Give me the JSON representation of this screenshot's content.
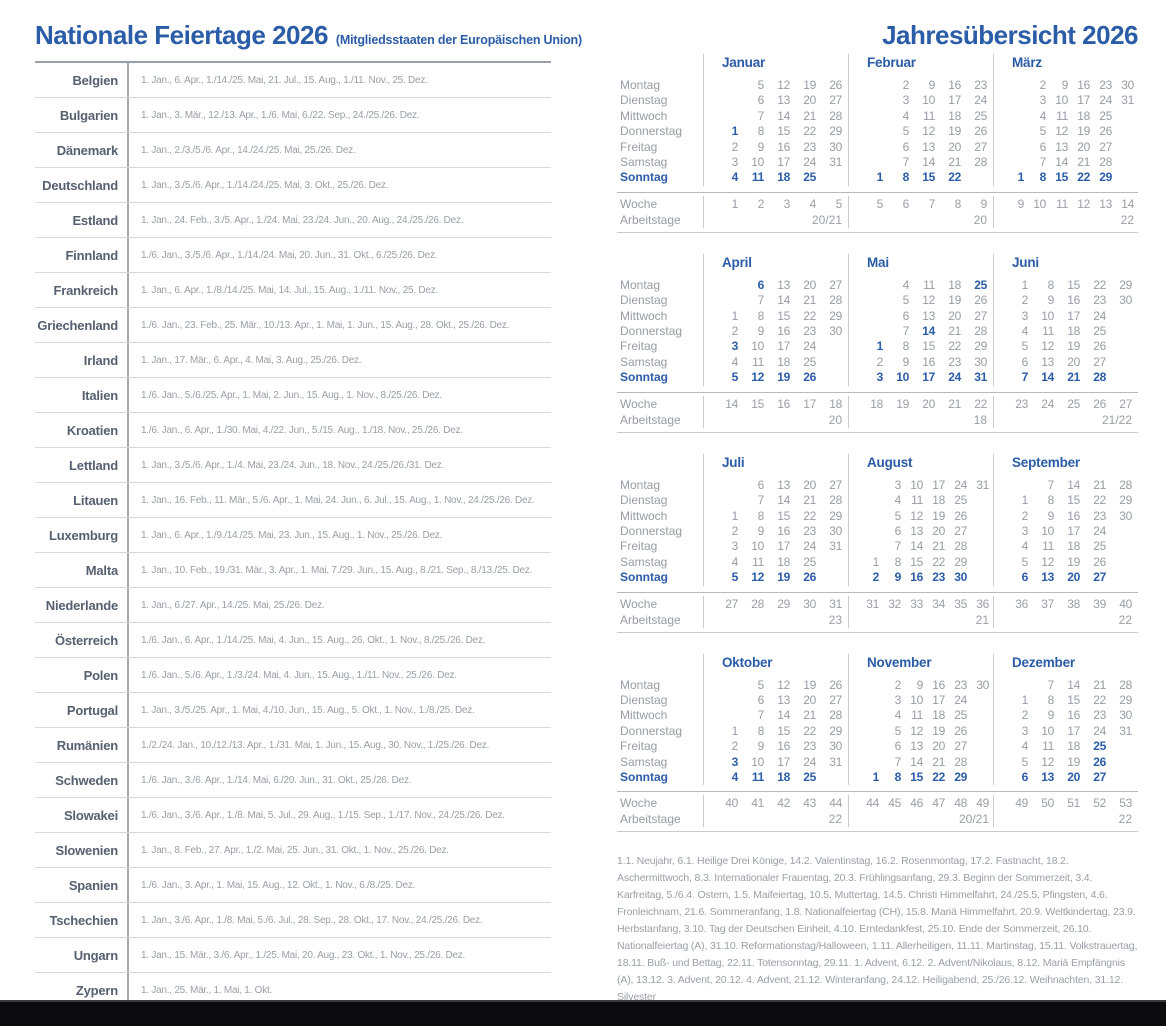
{
  "page": {
    "left_title": "Nationale Feiertage 2026",
    "left_subtitle": "(Mitgliedsstaaten der Europäischen Union)",
    "right_title": "Jahresübersicht 2026"
  },
  "colors": {
    "accent_blue": "#2b5ca7",
    "number_gray": "#989ca4",
    "country_slate": "#566070",
    "dates_gray": "#9a9ea6"
  },
  "holiday_table": {
    "rows": [
      {
        "country": "Belgien",
        "dates": "1. Jan., 6. Apr., 1./14./25. Mai, 21. Jul., 15. Aug., 1./11. Nov., 25. Dez."
      },
      {
        "country": "Bulgarien",
        "dates": "1. Jan., 3. Mär., 12./13. Apr., 1./6. Mai, 6./22. Sep., 24./25./26. Dez."
      },
      {
        "country": "Dänemark",
        "dates": "1. Jan., 2./3./5./6. Apr., 14./24./25. Mai, 25./26. Dez."
      },
      {
        "country": "Deutschland",
        "dates": "1. Jan., 3./5./6. Apr., 1./14./24./25. Mai, 3. Okt., 25./26. Dez."
      },
      {
        "country": "Estland",
        "dates": "1. Jan., 24. Feb., 3./5. Apr., 1./24. Mai, 23./24. Jun., 20. Aug., 24./25./26. Dez."
      },
      {
        "country": "Finnland",
        "dates": "1./6. Jan., 3./5./6. Apr., 1./14./24. Mai, 20. Jun., 31. Okt., 6./25./26. Dez."
      },
      {
        "country": "Frankreich",
        "dates": "1. Jan., 6. Apr., 1./8./14./25. Mai, 14. Jul., 15. Aug., 1./11. Nov., 25. Dez."
      },
      {
        "country": "Griechenland",
        "dates": "1./6. Jan., 23. Feb., 25. Mär., 10./13. Apr., 1. Mai, 1. Jun., 15. Aug., 28. Okt., 25./26. Dez."
      },
      {
        "country": "Irland",
        "dates": "1. Jan., 17. Mär., 6. Apr., 4. Mai, 3. Aug., 25./26. Dez."
      },
      {
        "country": "Italien",
        "dates": "1./6. Jan., 5./6./25. Apr., 1. Mai, 2. Jun., 15. Aug., 1. Nov., 8./25./26. Dez."
      },
      {
        "country": "Kroatien",
        "dates": "1./6. Jan., 6. Apr., 1./30. Mai, 4./22. Jun., 5./15. Aug., 1./18. Nov., 25./26. Dez."
      },
      {
        "country": "Lettland",
        "dates": "1. Jan., 3./5./6. Apr., 1./4. Mai, 23./24. Jun., 18. Nov., 24./25./26./31. Dez."
      },
      {
        "country": "Litauen",
        "dates": "1. Jan., 16. Feb., 11. Mär., 5./6. Apr., 1. Mai, 24. Jun., 6. Jul., 15. Aug., 1. Nov., 24./25./26. Dez."
      },
      {
        "country": "Luxemburg",
        "dates": "1. Jan., 6. Apr., 1./9./14./25. Mai, 23. Jun., 15. Aug., 1. Nov., 25./26. Dez."
      },
      {
        "country": "Malta",
        "dates": "1. Jan., 10. Feb., 19./31. Mär., 3. Apr., 1. Mai, 7./29. Jun., 15. Aug., 8./21. Sep., 8./13./25. Dez."
      },
      {
        "country": "Niederlande",
        "dates": "1. Jan., 6./27. Apr., 14./25. Mai, 25./26. Dez."
      },
      {
        "country": "Österreich",
        "dates": "1./6. Jan., 6. Apr., 1./14./25. Mai, 4. Jun., 15. Aug., 26. Okt., 1. Nov., 8./25./26. Dez."
      },
      {
        "country": "Polen",
        "dates": "1./6. Jan., 5./6. Apr., 1./3./24. Mai, 4. Jun., 15. Aug., 1./11. Nov., 25./26. Dez."
      },
      {
        "country": "Portugal",
        "dates": "1. Jan., 3./5./25. Apr., 1. Mai, 4./10. Jun., 15. Aug., 5. Okt., 1. Nov., 1./8./25. Dez."
      },
      {
        "country": "Rumänien",
        "dates": "1./2./24. Jan., 10./12./13. Apr., 1./31. Mai, 1. Jun., 15. Aug., 30. Nov., 1./25./26. Dez."
      },
      {
        "country": "Schweden",
        "dates": "1./6. Jan., 3./6. Apr., 1./14. Mai, 6./20. Jun., 31. Okt., 25./26. Dez."
      },
      {
        "country": "Slowakei",
        "dates": "1./6. Jan., 3./6. Apr., 1./8. Mai, 5. Jul., 29. Aug., 1./15. Sep., 1./17. Nov., 24./25./26. Dez."
      },
      {
        "country": "Slowenien",
        "dates": "1. Jan., 8. Feb., 27. Apr., 1./2. Mai, 25. Jun., 31. Okt., 1. Nov., 25./26. Dez."
      },
      {
        "country": "Spanien",
        "dates": "1./6. Jan., 3. Apr., 1. Mai, 15. Aug., 12. Okt., 1. Nov., 6./8./25. Dez."
      },
      {
        "country": "Tschechien",
        "dates": "1. Jan., 3./6. Apr., 1./8. Mai, 5./6. Jul., 28. Sep., 28. Okt., 17. Nov., 24./25./26. Dez."
      },
      {
        "country": "Ungarn",
        "dates": "1. Jan., 15. Mär., 3./6. Apr., 1./25. Mai, 20. Aug., 23. Okt., 1. Nov., 25./26. Dez."
      },
      {
        "country": "Zypern",
        "dates": "1. Jan., 25. Mär., 1. Mai, 1. Okt."
      }
    ]
  },
  "calendar": {
    "weekday_labels": [
      "Montag",
      "Dienstag",
      "Mittwoch",
      "Donnerstag",
      "Freitag",
      "Samstag",
      "Sonntag"
    ],
    "week_label": "Woche",
    "workdays_label": "Arbeitstage",
    "months": [
      {
        "name": "Januar",
        "cols": 5,
        "bold": [
          1
        ],
        "days": [
          [
            "",
            "5",
            "12",
            "19",
            "26"
          ],
          [
            "",
            "6",
            "13",
            "20",
            "27"
          ],
          [
            "",
            "7",
            "14",
            "21",
            "28"
          ],
          [
            "1",
            "8",
            "15",
            "22",
            "29"
          ],
          [
            "2",
            "9",
            "16",
            "23",
            "30"
          ],
          [
            "3",
            "10",
            "17",
            "24",
            "31"
          ],
          [
            "4",
            "11",
            "18",
            "25",
            ""
          ]
        ],
        "weeks": [
          "1",
          "2",
          "3",
          "4",
          "5"
        ],
        "workdays": "20/21"
      },
      {
        "name": "Februar",
        "cols": 5,
        "bold": [],
        "days": [
          [
            "",
            "2",
            "9",
            "16",
            "23"
          ],
          [
            "",
            "3",
            "10",
            "17",
            "24"
          ],
          [
            "",
            "4",
            "11",
            "18",
            "25"
          ],
          [
            "",
            "5",
            "12",
            "19",
            "26"
          ],
          [
            "",
            "6",
            "13",
            "20",
            "27"
          ],
          [
            "",
            "7",
            "14",
            "21",
            "28"
          ],
          [
            "1",
            "8",
            "15",
            "22",
            ""
          ]
        ],
        "weeks": [
          "5",
          "6",
          "7",
          "8",
          "9"
        ],
        "workdays": "20"
      },
      {
        "name": "März",
        "cols": 6,
        "bold": [],
        "days": [
          [
            "",
            "2",
            "9",
            "16",
            "23",
            "30"
          ],
          [
            "",
            "3",
            "10",
            "17",
            "24",
            "31"
          ],
          [
            "",
            "4",
            "11",
            "18",
            "25",
            ""
          ],
          [
            "",
            "5",
            "12",
            "19",
            "26",
            ""
          ],
          [
            "",
            "6",
            "13",
            "20",
            "27",
            ""
          ],
          [
            "",
            "7",
            "14",
            "21",
            "28",
            ""
          ],
          [
            "1",
            "8",
            "15",
            "22",
            "29",
            ""
          ]
        ],
        "weeks": [
          "9",
          "10",
          "11",
          "12",
          "13",
          "14"
        ],
        "workdays": "22"
      },
      {
        "name": "April",
        "cols": 5,
        "bold": [
          3,
          6
        ],
        "days": [
          [
            "",
            "6",
            "13",
            "20",
            "27"
          ],
          [
            "",
            "7",
            "14",
            "21",
            "28"
          ],
          [
            "1",
            "8",
            "15",
            "22",
            "29"
          ],
          [
            "2",
            "9",
            "16",
            "23",
            "30"
          ],
          [
            "3",
            "10",
            "17",
            "24",
            ""
          ],
          [
            "4",
            "11",
            "18",
            "25",
            ""
          ],
          [
            "5",
            "12",
            "19",
            "26",
            ""
          ]
        ],
        "weeks": [
          "14",
          "15",
          "16",
          "17",
          "18"
        ],
        "workdays": "20"
      },
      {
        "name": "Mai",
        "cols": 5,
        "bold": [
          1,
          14,
          25
        ],
        "days": [
          [
            "",
            "4",
            "11",
            "18",
            "25"
          ],
          [
            "",
            "5",
            "12",
            "19",
            "26"
          ],
          [
            "",
            "6",
            "13",
            "20",
            "27"
          ],
          [
            "",
            "7",
            "14",
            "21",
            "28"
          ],
          [
            "1",
            "8",
            "15",
            "22",
            "29"
          ],
          [
            "2",
            "9",
            "16",
            "23",
            "30"
          ],
          [
            "3",
            "10",
            "17",
            "24",
            "31"
          ]
        ],
        "weeks": [
          "18",
          "19",
          "20",
          "21",
          "22"
        ],
        "workdays": "18"
      },
      {
        "name": "Juni",
        "cols": 5,
        "bold": [],
        "days": [
          [
            "1",
            "8",
            "15",
            "22",
            "29"
          ],
          [
            "2",
            "9",
            "16",
            "23",
            "30"
          ],
          [
            "3",
            "10",
            "17",
            "24",
            ""
          ],
          [
            "4",
            "11",
            "18",
            "25",
            ""
          ],
          [
            "5",
            "12",
            "19",
            "26",
            ""
          ],
          [
            "6",
            "13",
            "20",
            "27",
            ""
          ],
          [
            "7",
            "14",
            "21",
            "28",
            ""
          ]
        ],
        "weeks": [
          "23",
          "24",
          "25",
          "26",
          "27"
        ],
        "workdays": "21/22"
      },
      {
        "name": "Juli",
        "cols": 5,
        "bold": [],
        "days": [
          [
            "",
            "6",
            "13",
            "20",
            "27"
          ],
          [
            "",
            "7",
            "14",
            "21",
            "28"
          ],
          [
            "1",
            "8",
            "15",
            "22",
            "29"
          ],
          [
            "2",
            "9",
            "16",
            "23",
            "30"
          ],
          [
            "3",
            "10",
            "17",
            "24",
            "31"
          ],
          [
            "4",
            "11",
            "18",
            "25",
            ""
          ],
          [
            "5",
            "12",
            "19",
            "26",
            ""
          ]
        ],
        "weeks": [
          "27",
          "28",
          "29",
          "30",
          "31"
        ],
        "workdays": "23"
      },
      {
        "name": "August",
        "cols": 6,
        "bold": [],
        "days": [
          [
            "",
            "3",
            "10",
            "17",
            "24",
            "31"
          ],
          [
            "",
            "4",
            "11",
            "18",
            "25",
            ""
          ],
          [
            "",
            "5",
            "12",
            "19",
            "26",
            ""
          ],
          [
            "",
            "6",
            "13",
            "20",
            "27",
            ""
          ],
          [
            "",
            "7",
            "14",
            "21",
            "28",
            ""
          ],
          [
            "1",
            "8",
            "15",
            "22",
            "29",
            ""
          ],
          [
            "2",
            "9",
            "16",
            "23",
            "30",
            ""
          ]
        ],
        "weeks": [
          "31",
          "32",
          "33",
          "34",
          "35",
          "36"
        ],
        "workdays": "21"
      },
      {
        "name": "September",
        "cols": 5,
        "bold": [],
        "days": [
          [
            "",
            "7",
            "14",
            "21",
            "28"
          ],
          [
            "1",
            "8",
            "15",
            "22",
            "29"
          ],
          [
            "2",
            "9",
            "16",
            "23",
            "30"
          ],
          [
            "3",
            "10",
            "17",
            "24",
            ""
          ],
          [
            "4",
            "11",
            "18",
            "25",
            ""
          ],
          [
            "5",
            "12",
            "19",
            "26",
            ""
          ],
          [
            "6",
            "13",
            "20",
            "27",
            ""
          ]
        ],
        "weeks": [
          "36",
          "37",
          "38",
          "39",
          "40"
        ],
        "workdays": "22"
      },
      {
        "name": "Oktober",
        "cols": 5,
        "bold": [
          3
        ],
        "days": [
          [
            "",
            "5",
            "12",
            "19",
            "26"
          ],
          [
            "",
            "6",
            "13",
            "20",
            "27"
          ],
          [
            "",
            "7",
            "14",
            "21",
            "28"
          ],
          [
            "1",
            "8",
            "15",
            "22",
            "29"
          ],
          [
            "2",
            "9",
            "16",
            "23",
            "30"
          ],
          [
            "3",
            "10",
            "17",
            "24",
            "31"
          ],
          [
            "4",
            "11",
            "18",
            "25",
            ""
          ]
        ],
        "weeks": [
          "40",
          "41",
          "42",
          "43",
          "44"
        ],
        "workdays": "22"
      },
      {
        "name": "November",
        "cols": 6,
        "bold": [],
        "days": [
          [
            "",
            "2",
            "9",
            "16",
            "23",
            "30"
          ],
          [
            "",
            "3",
            "10",
            "17",
            "24",
            ""
          ],
          [
            "",
            "4",
            "11",
            "18",
            "25",
            ""
          ],
          [
            "",
            "5",
            "12",
            "19",
            "26",
            ""
          ],
          [
            "",
            "6",
            "13",
            "20",
            "27",
            ""
          ],
          [
            "",
            "7",
            "14",
            "21",
            "28",
            ""
          ],
          [
            "1",
            "8",
            "15",
            "22",
            "29",
            ""
          ]
        ],
        "weeks": [
          "44",
          "45",
          "46",
          "47",
          "48",
          "49"
        ],
        "workdays": "20/21"
      },
      {
        "name": "Dezember",
        "cols": 5,
        "bold": [
          25,
          26
        ],
        "days": [
          [
            "",
            "7",
            "14",
            "21",
            "28"
          ],
          [
            "1",
            "8",
            "15",
            "22",
            "29"
          ],
          [
            "2",
            "9",
            "16",
            "23",
            "30"
          ],
          [
            "3",
            "10",
            "17",
            "24",
            "31"
          ],
          [
            "4",
            "11",
            "18",
            "25",
            ""
          ],
          [
            "5",
            "12",
            "19",
            "26",
            ""
          ],
          [
            "6",
            "13",
            "20",
            "27",
            ""
          ]
        ],
        "weeks": [
          "49",
          "50",
          "51",
          "52",
          "53"
        ],
        "workdays": "22"
      }
    ]
  },
  "footnote": "1.1. Neujahr, 6.1. Heilige Drei Könige, 14.2. Valentinstag, 16.2. Rosenmontag, 17.2. Fastnacht, 18.2. Aschermittwoch, 8.3. Internationaler Frauentag, 20.3. Frühlingsanfang, 29.3. Beginn der Sommerzeit, 3.4. Karfreitag, 5./6.4. Ostern, 1.5. Maifeiertag, 10.5. Muttertag, 14.5. Christi Himmelfahrt, 24./25.5. Pfingsten, 4.6. Fronleichnam, 21.6. Sommeranfang, 1.8. Nationalfeiertag (CH), 15.8. Mariä Himmelfahrt, 20.9. Weltkindertag, 23.9. Herbstanfang, 3.10. Tag der Deutschen Einheit, 4.10. Erntedankfest, 25.10. Ende der Sommerzeit, 26.10. Nationalfeiertag (A), 31.10. Reformationstag/Halloween, 1.11. Allerheiligen, 11.11. Martinstag, 15.11. Volkstrauertag, 18.11. Buß- und Bettag, 22.11. Totensonntag, 29.11. 1. Advent, 6.12. 2. Advent/Nikolaus, 8.12. Mariä Empfängnis (A), 13.12. 3. Advent, 20.12. 4. Advent, 21.12. Winteranfang, 24.12. Heiligabend, 25./26.12. Weihnachten, 31.12. Silvester"
}
